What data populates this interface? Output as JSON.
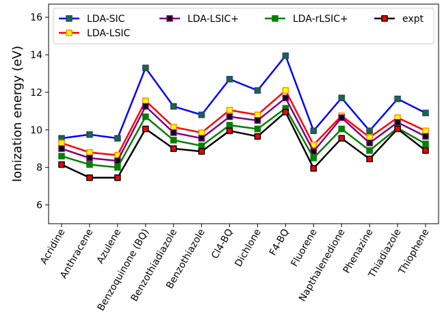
{
  "chart_data": {
    "type": "line",
    "title": "",
    "xlabel": "",
    "ylabel": "Ionization energy (eV)",
    "ylim": [
      5,
      16.7
    ],
    "yticks": [
      6,
      8,
      10,
      12,
      14,
      16
    ],
    "grid": false,
    "legend_position": "top",
    "categories": [
      "Acridine",
      "Anthracene",
      "Azulene",
      "Benzoquinone (BQ)",
      "Benzothiadiazole",
      "Benzothiazole",
      "Cl4-BQ",
      "Dichlone",
      "F4-BQ",
      "Fluorene",
      "Napthalenedione",
      "Phenazine",
      "Thiadiazole",
      "Thiophene"
    ],
    "series": [
      {
        "name": "LDA-SIC",
        "line_color": "#0000ff",
        "marker_face": "#1e6e1e",
        "marker_edge": "#1f3fa0",
        "values": [
          9.55,
          9.75,
          9.55,
          13.3,
          11.25,
          10.8,
          12.7,
          12.1,
          13.95,
          9.95,
          11.7,
          9.95,
          11.65,
          10.9
        ]
      },
      {
        "name": "LDA-LSIC",
        "line_color": "#ff0000",
        "marker_face": "#ffff00",
        "marker_edge": "#ff8c00",
        "values": [
          9.3,
          8.8,
          8.65,
          11.55,
          10.15,
          9.85,
          11.05,
          10.8,
          12.1,
          9.2,
          10.75,
          9.6,
          10.65,
          9.95
        ]
      },
      {
        "name": "LDA-LSIC+",
        "line_color": "#800080",
        "marker_face": "#000000",
        "marker_edge": "#800080",
        "values": [
          9.0,
          8.5,
          8.35,
          11.25,
          9.85,
          9.55,
          10.7,
          10.5,
          11.7,
          8.85,
          10.65,
          9.3,
          10.4,
          9.65
        ]
      },
      {
        "name": "LDA-rLSIC+",
        "line_color": "#008000",
        "marker_face": "#008000",
        "marker_edge": "#008000",
        "values": [
          8.6,
          8.15,
          8.0,
          10.7,
          9.45,
          9.15,
          10.25,
          10.05,
          11.15,
          8.5,
          10.05,
          8.9,
          10.1,
          9.25
        ]
      },
      {
        "name": "expt",
        "line_color": "#000000",
        "marker_face": "#ff0000",
        "marker_edge": "#000000",
        "values": [
          8.15,
          7.45,
          7.45,
          10.05,
          9.0,
          8.85,
          9.95,
          9.65,
          10.95,
          7.95,
          9.55,
          8.45,
          10.05,
          8.9
        ]
      }
    ]
  }
}
